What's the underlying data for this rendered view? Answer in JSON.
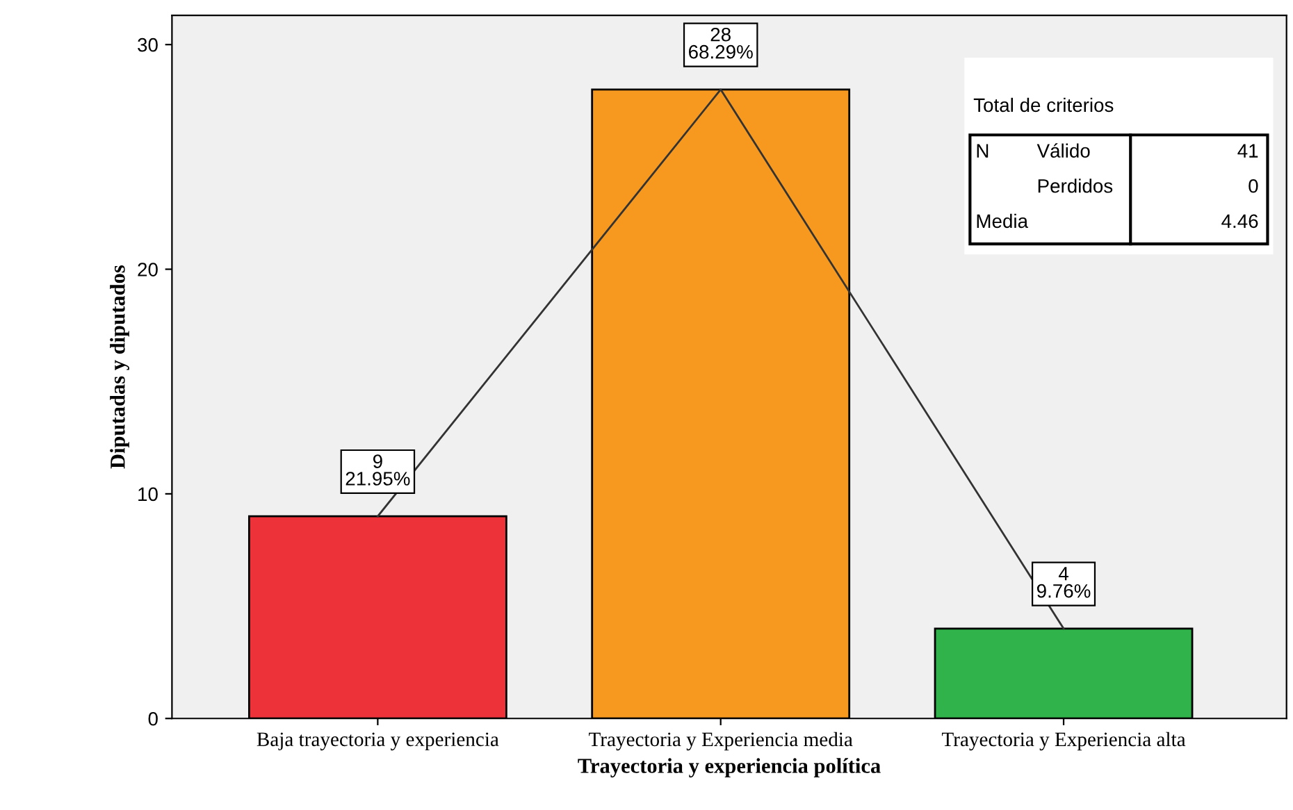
{
  "chart_data": {
    "type": "bar",
    "xlabel": "Trayectoria y experiencia política",
    "ylabel": "Diputadas y diputados",
    "categories": [
      "Baja trayectoria y experiencia",
      "Trayectoria y Experiencia media",
      "Trayectoria y Experiencia alta"
    ],
    "series": [
      {
        "colors": [
          "#ee3239",
          "#f7981f",
          "#2fb34a"
        ],
        "values": [
          9,
          28,
          4
        ],
        "value_labels": [
          "9\n21.95%",
          "28\n68.29%",
          "4\n9.76%"
        ]
      },
      {
        "type": "line",
        "color": "#333333",
        "values": [
          9,
          28,
          4
        ]
      }
    ],
    "ylim": [
      0,
      31.3
    ],
    "yticks": [
      0,
      10,
      20,
      30
    ],
    "grid": false,
    "annotations": [
      "Total de criterios",
      "N",
      "Válido",
      "41",
      "Perdidos",
      "0",
      "Media",
      "4.46"
    ]
  }
}
